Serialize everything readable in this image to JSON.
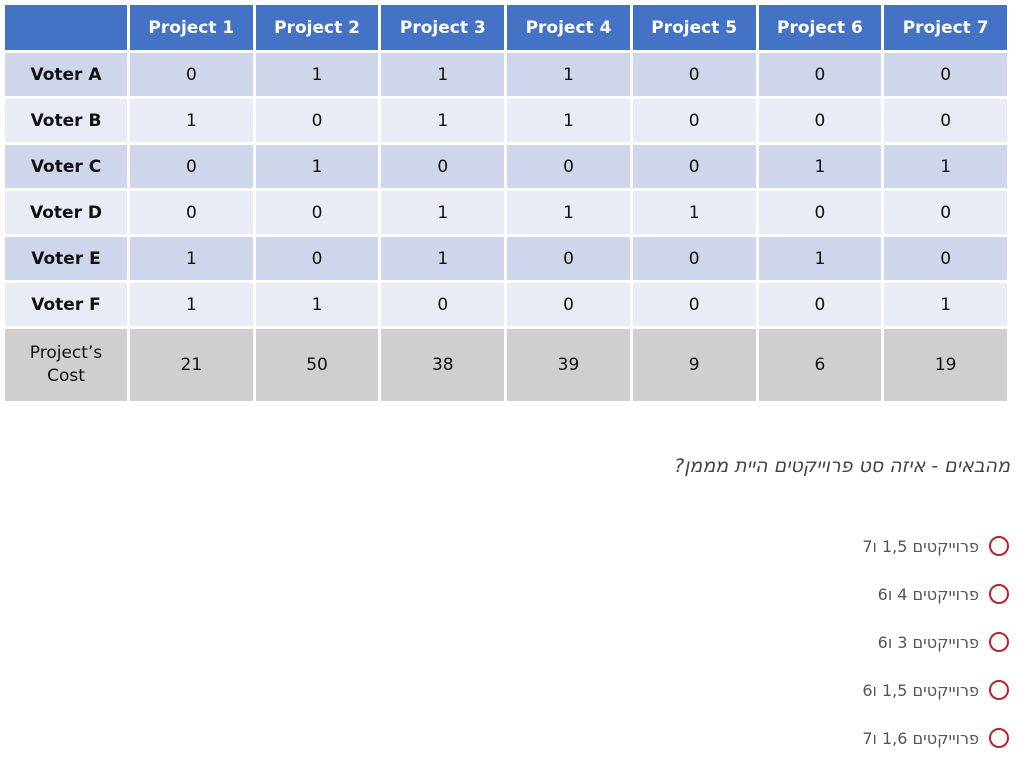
{
  "table": {
    "columns": [
      "Project 1",
      "Project 2",
      "Project 3",
      "Project 4",
      "Project 5",
      "Project 6",
      "Project 7"
    ],
    "rows": [
      {
        "label": "Voter A",
        "cells": [
          0,
          1,
          1,
          1,
          0,
          0,
          0
        ]
      },
      {
        "label": "Voter B",
        "cells": [
          1,
          0,
          1,
          1,
          0,
          0,
          0
        ]
      },
      {
        "label": "Voter C",
        "cells": [
          0,
          1,
          0,
          0,
          0,
          1,
          1
        ]
      },
      {
        "label": "Voter D",
        "cells": [
          0,
          0,
          1,
          1,
          1,
          0,
          0
        ]
      },
      {
        "label": "Voter E",
        "cells": [
          1,
          0,
          1,
          0,
          0,
          1,
          0
        ]
      },
      {
        "label": "Voter F",
        "cells": [
          1,
          1,
          0,
          0,
          0,
          0,
          1
        ]
      }
    ],
    "cost": {
      "label": "Project’s Cost",
      "cells": [
        21,
        50,
        38,
        39,
        9,
        6,
        19
      ]
    }
  },
  "question": {
    "text": "מהבאים - איזה סט פרוייקטים היית מממן?",
    "options": [
      "פרוייקטים 1,5 ו7",
      "פרוייקטים 4 ו6",
      "פרוייקטים 3 ו6",
      "פרוייקטים 1,5 ו6",
      "פרוייקטים 1,6 ו7"
    ]
  }
}
